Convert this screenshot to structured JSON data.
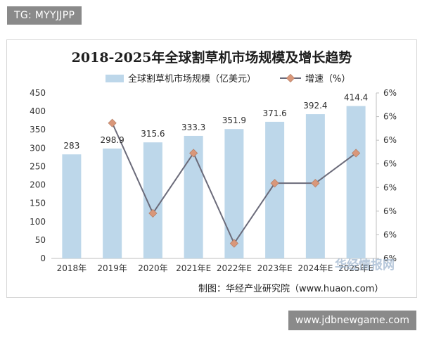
{
  "overlay": {
    "tg_label": "TG: MYYJJPP",
    "site_label": "www.jdbnewgame.com",
    "watermark_text": "华经情报网"
  },
  "chart_data": {
    "type": "bar",
    "title": "2018-2025年全球割草机市场规模及增长趋势",
    "source": "制图：华经产业研究院（www.huaon.com）",
    "categories": [
      "2018年",
      "2019年",
      "2020年",
      "2021年E",
      "2022年E",
      "2023年E",
      "2024年E",
      "2025年E"
    ],
    "series": [
      {
        "name": "全球割草机市场规模（亿美元）",
        "type": "bar",
        "axis": "left",
        "values": [
          283,
          298.9,
          315.6,
          333.3,
          351.9,
          371.6,
          392.4,
          414.4
        ],
        "labels": [
          "283",
          "298.9",
          "315.6",
          "333.3",
          "351.9",
          "371.6",
          "392.4",
          "414.4"
        ],
        "color": "#bdd7ea"
      },
      {
        "name": "增速（%）",
        "type": "line",
        "axis": "right",
        "values": [
          null,
          5.62,
          5.59,
          5.61,
          5.58,
          5.6,
          5.6,
          5.61
        ],
        "color": "#6b6b7a",
        "marker_color": "#d9977a"
      }
    ],
    "y_left": {
      "min": 0,
      "max": 450,
      "step": 50,
      "ticks": [
        "0",
        "50",
        "100",
        "150",
        "200",
        "250",
        "300",
        "350",
        "400",
        "450"
      ]
    },
    "y_right": {
      "min": 5.575,
      "max": 5.63,
      "tick_labels": [
        "6%",
        "6%",
        "6%",
        "6%",
        "6%",
        "6%",
        "6%",
        "6%"
      ]
    },
    "legend_position": "top",
    "grid": false
  }
}
